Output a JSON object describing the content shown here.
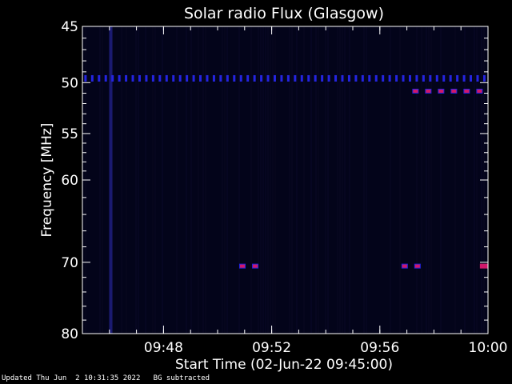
{
  "chart_data": {
    "type": "heatmap",
    "title": "Solar radio Flux (Glasgow)",
    "xlabel": "Start Time (02-Jun-22 09:45:00)",
    "ylabel": "Frequency [MHz]",
    "x_start_minutes": 0,
    "x_end_minutes": 15,
    "x_ticks": [
      {
        "minute": 3,
        "label": "09:48"
      },
      {
        "minute": 7,
        "label": "09:52"
      },
      {
        "minute": 11,
        "label": "09:56"
      },
      {
        "minute": 15,
        "label": "10:00"
      }
    ],
    "y_scale": "log",
    "ylim": [
      45,
      80
    ],
    "y_ticks": [
      45,
      50,
      55,
      60,
      70,
      80
    ],
    "colors": {
      "background": "#000000",
      "plot_background": "#03041a",
      "interference": "#2424e0",
      "strong": "#d0186a"
    },
    "interference_band_mhz": 49.6,
    "interference_band_minutes": [
      0.1,
      0.35,
      0.6,
      0.85,
      1.1,
      1.35,
      1.6,
      1.85,
      2.1,
      2.35,
      2.6,
      2.85,
      3.1,
      3.35,
      3.6,
      3.85,
      4.1,
      4.35,
      4.6,
      4.85,
      5.1,
      5.35,
      5.6,
      5.85,
      6.1,
      6.35,
      6.6,
      6.85,
      7.1,
      7.35,
      7.6,
      7.85,
      8.1,
      8.35,
      8.6,
      8.85,
      9.1,
      9.35,
      9.6,
      9.85,
      10.1,
      10.35,
      10.6,
      10.85,
      11.1,
      11.35,
      11.6,
      11.85,
      12.1,
      12.35,
      12.6,
      12.85,
      13.1,
      13.35,
      13.6,
      13.85,
      14.1,
      14.35,
      14.6,
      14.85
    ],
    "burst_segments": [
      {
        "mhz": 50.8,
        "start_minute": 12.2,
        "end_minute": 14.9,
        "dash": true
      },
      {
        "mhz": 70.5,
        "start_minute": 5.8,
        "end_minute": 6.7,
        "dash": true
      },
      {
        "mhz": 70.5,
        "start_minute": 11.8,
        "end_minute": 12.6,
        "dash": true
      },
      {
        "mhz": 70.5,
        "start_minute": 14.7,
        "end_minute": 15.0,
        "dash": false
      }
    ],
    "broadband_spike_minute": 1.05
  },
  "footer": {
    "updated": "Updated Thu Jun  2 10:31:35 2022",
    "note": "BG subtracted"
  }
}
